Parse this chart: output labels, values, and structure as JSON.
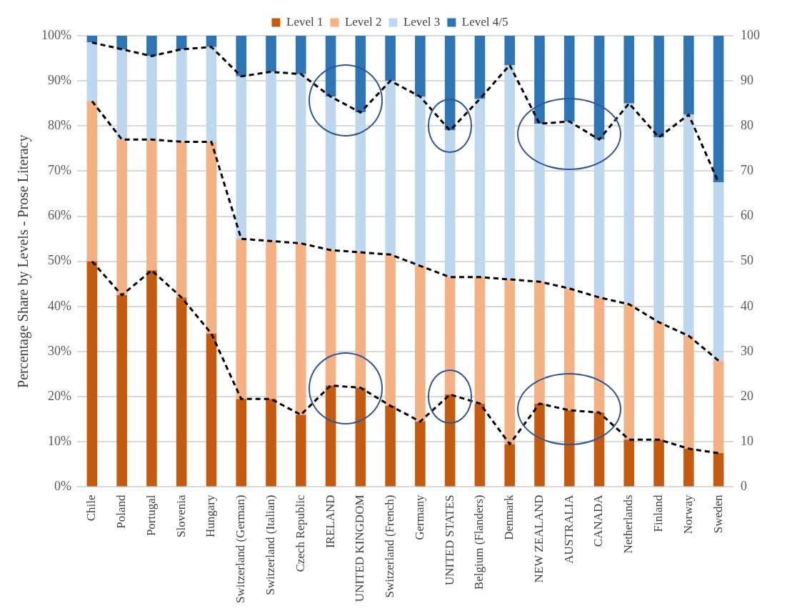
{
  "chart_data": {
    "type": "bar",
    "stacked": true,
    "ylabel": "Percentage Share by Levels - Prose Literacy",
    "categories": [
      "Chile",
      "Poland",
      "Portugal",
      "Slovenia",
      "Hungary",
      "Switzerland (German)",
      "Switzerland (Italian)",
      "Czech Republic",
      "IRELAND",
      "UNITED KINGDOM",
      "Switzerland (French)",
      "Germany",
      "UNITED STATES",
      "Belgium (Flanders)",
      "Denmark",
      "NEW ZEALAND",
      "AUSTRALIA",
      "CANADA",
      "Netherlands",
      "Finland",
      "Norway",
      "Sweden"
    ],
    "series": [
      {
        "name": "Level 1",
        "color": "#c55a11",
        "values": [
          50,
          42.5,
          48,
          42,
          34,
          19.5,
          19.5,
          16,
          22.5,
          22,
          18,
          14.5,
          20.5,
          18.5,
          9.5,
          18.5,
          17,
          16.5,
          10.5,
          10.5,
          8.5,
          7.5
        ]
      },
      {
        "name": "Level 2",
        "color": "#f4b183",
        "values": [
          35.5,
          34.5,
          29,
          34.5,
          42.5,
          35.5,
          35,
          38,
          30,
          30,
          33.5,
          34.5,
          26,
          28,
          36.5,
          27,
          27,
          25.5,
          30,
          26,
          25,
          20.5
        ]
      },
      {
        "name": "Level 3",
        "color": "#bdd7ee",
        "values": [
          13,
          20,
          18.5,
          20.5,
          21,
          36,
          37.5,
          37.5,
          34,
          31,
          38.5,
          37.5,
          32.5,
          39.5,
          47.5,
          35,
          37,
          35,
          44.5,
          41,
          49,
          39.5
        ]
      },
      {
        "name": "Level 4/5",
        "color": "#2e75b6",
        "values": [
          1.5,
          3,
          4.5,
          3,
          2.5,
          9,
          8,
          8.5,
          13.5,
          17,
          10,
          13.5,
          21,
          14,
          6.5,
          19.5,
          19,
          23,
          15,
          22.5,
          17.5,
          32.5
        ]
      },
      {
        "type": "line",
        "axis": "y2",
        "color": "#000000",
        "line_style": "dashed",
        "marker": "none",
        "values": [
          50,
          42.5,
          48,
          42,
          34,
          19.5,
          19.5,
          16,
          22.5,
          22,
          18,
          14.5,
          20.5,
          18.5,
          9.5,
          18.5,
          17,
          16.5,
          10.5,
          10.5,
          8.5,
          7.5
        ]
      },
      {
        "type": "line",
        "axis": "y2",
        "color": "#000000",
        "line_style": "dashed",
        "marker": "none",
        "values": [
          85.5,
          77,
          77,
          76.5,
          76.5,
          55,
          54.5,
          54,
          52.5,
          52,
          51.5,
          49,
          46.5,
          46.5,
          46,
          45.5,
          44,
          42,
          40.5,
          36.5,
          33.5,
          28
        ]
      },
      {
        "type": "line",
        "axis": "y2",
        "color": "#000000",
        "line_style": "dashed",
        "marker": "none",
        "values": [
          98.5,
          97,
          95.5,
          97,
          97.5,
          91,
          92,
          91.5,
          86.5,
          83,
          90,
          86.5,
          79,
          86,
          93.5,
          80.5,
          81,
          77,
          85,
          77.5,
          82.5,
          67.5
        ]
      }
    ],
    "ylim": [
      0,
      100
    ],
    "yticks": [
      {
        "value": 0,
        "label": "0%"
      },
      {
        "value": 10,
        "label": "10%"
      },
      {
        "value": 20,
        "label": "20%"
      },
      {
        "value": 30,
        "label": "30%"
      },
      {
        "value": 40,
        "label": "40%"
      },
      {
        "value": 50,
        "label": "50%"
      },
      {
        "value": 60,
        "label": "60%"
      },
      {
        "value": 70,
        "label": "70%"
      },
      {
        "value": 80,
        "label": "80%"
      },
      {
        "value": 90,
        "label": "90%"
      },
      {
        "value": 100,
        "label": "100%"
      }
    ],
    "y2lim": [
      0,
      100
    ],
    "y2ticks": [
      0,
      10,
      20,
      30,
      40,
      50,
      60,
      70,
      80,
      90,
      100
    ],
    "grid": "y",
    "legend": "top"
  }
}
